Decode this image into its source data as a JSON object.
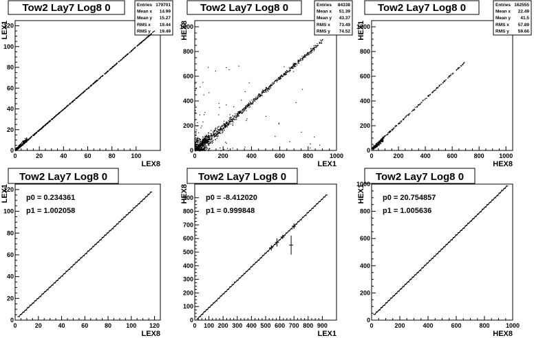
{
  "chart_data": [
    {
      "type": "scatter",
      "title": "Tow2 Lay7 Log8 0",
      "xlabel": "LEX8",
      "ylabel": "LEX1",
      "xlim": [
        0,
        120
      ],
      "ylim": [
        0,
        125
      ],
      "xticks": [
        0,
        20,
        40,
        60,
        80,
        100
      ],
      "yticks": [
        0,
        20,
        40,
        60,
        80,
        100,
        120
      ],
      "stats": [
        [
          "Entries",
          "179701"
        ],
        [
          "Mean x",
          "14.99"
        ],
        [
          "Mean y",
          "15.27"
        ],
        [
          "RMS x",
          "19.44"
        ],
        [
          "RMS y",
          "19.49"
        ]
      ],
      "relation": {
        "p0": 0.234361,
        "p1": 1.002058,
        "x_range": [
          0,
          115
        ]
      }
    },
    {
      "type": "scatter",
      "title": "Tow2 Lay7 Log8 0",
      "xlabel": "LEX1",
      "ylabel": "HEX8",
      "xlim": [
        0,
        1000
      ],
      "ylim": [
        0,
        1050
      ],
      "xticks": [
        0,
        200,
        400,
        600,
        800,
        1000
      ],
      "yticks": [
        0,
        200,
        400,
        600,
        800,
        1000
      ],
      "stats": [
        [
          "Entries",
          "84338"
        ],
        [
          "Mean x",
          "51.39"
        ],
        [
          "Mean y",
          "43.37"
        ],
        [
          "RMS x",
          "73.49"
        ],
        [
          "RMS y",
          "74.52"
        ]
      ],
      "relation": {
        "p0": -8.41202,
        "p1": 0.999848,
        "x_range": [
          0,
          920
        ]
      }
    },
    {
      "type": "scatter",
      "title": "Tow2 Lay7 Log8 0",
      "xlabel": "HEX8",
      "ylabel": "HEX1",
      "xlim": [
        0,
        1050
      ],
      "ylim": [
        0,
        1050
      ],
      "xticks": [
        0,
        200,
        400,
        600,
        800,
        1000
      ],
      "yticks": [
        0,
        200,
        400,
        600,
        800,
        1000
      ],
      "stats": [
        [
          "Entries",
          "162555"
        ],
        [
          "Mean x",
          "22.49"
        ],
        [
          "Mean y",
          "41.5"
        ],
        [
          "RMS x",
          "57.89"
        ],
        [
          "RMS y",
          "59.66"
        ]
      ],
      "relation": {
        "p0": 20.754857,
        "p1": 1.005636,
        "x_range": [
          0,
          700
        ]
      }
    },
    {
      "type": "line",
      "title": "Tow2 Lay7 Log8 0",
      "xlabel": "LEX8",
      "ylabel": "LEX1",
      "xlim": [
        0,
        125
      ],
      "ylim": [
        0,
        125
      ],
      "xticks": [
        0,
        20,
        40,
        60,
        80,
        100,
        120
      ],
      "yticks": [
        0,
        20,
        40,
        60,
        80,
        100,
        120
      ],
      "fit": {
        "p0": "0.234361",
        "p1": "1.002058"
      },
      "fit_label_p0": "p0 = 0.234361",
      "fit_label_p1": "p1 = 1.002058",
      "x_range": [
        3,
        117
      ]
    },
    {
      "type": "line",
      "title": "Tow2 Lay7 Log8 0",
      "xlabel": "LEX1",
      "ylabel": "HEX8",
      "xlim": [
        0,
        1000
      ],
      "ylim": [
        0,
        1000
      ],
      "xticks": [
        0,
        100,
        200,
        300,
        400,
        500,
        600,
        700,
        800,
        900
      ],
      "yticks": [
        0,
        100,
        200,
        300,
        400,
        500,
        600,
        700,
        800,
        900
      ],
      "fit": {
        "p0": "-8.412020",
        "p1": "0.999848"
      },
      "fit_label_p0": "p0 = -8.412020",
      "fit_label_p1": "p1 = 0.999848",
      "x_range": [
        20,
        930
      ]
    },
    {
      "type": "line",
      "title": "Tow2 Lay7 Log8 0",
      "xlabel": "HEX8",
      "ylabel": "HEX1",
      "xlim": [
        0,
        1000
      ],
      "ylim": [
        0,
        1000
      ],
      "xticks": [
        0,
        200,
        400,
        600,
        800,
        1000
      ],
      "yticks": [
        0,
        200,
        400,
        600,
        800,
        1000
      ],
      "fit": {
        "p0": "20.754857",
        "p1": "1.005636"
      },
      "fit_label_p0": "p0 = 20.754857",
      "fit_label_p1": "p1 = 1.005636",
      "x_range": [
        20,
        960
      ]
    }
  ]
}
